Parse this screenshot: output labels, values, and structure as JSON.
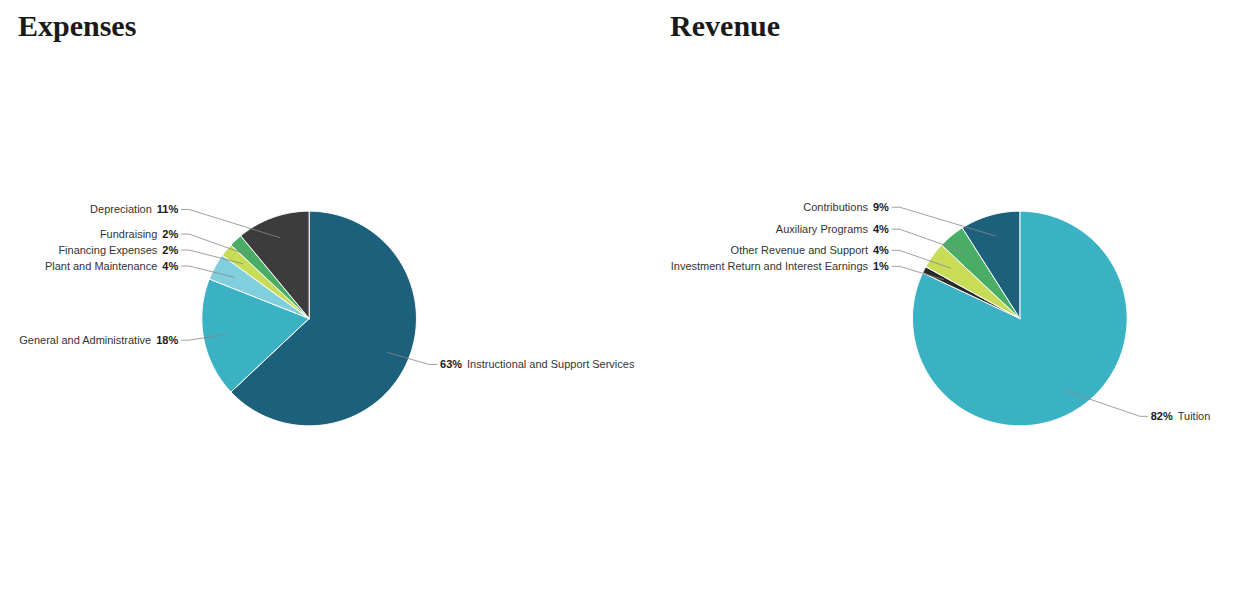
{
  "chart_data": [
    {
      "type": "pie",
      "title": "Expenses",
      "categories": [
        "Instructional and Support Services",
        "General and Administrative",
        "Plant and Maintenance",
        "Financing Expenses",
        "Fundraising",
        "Depreciation"
      ],
      "values": [
        63,
        18,
        4,
        2,
        2,
        11
      ],
      "value_labels": [
        "63%",
        "18%",
        "4%",
        "2%",
        "2%",
        "11%"
      ],
      "colors": [
        "#1d607c",
        "#3ab2c4",
        "#7fcfdc",
        "#c9dc58",
        "#4aad66",
        "#3c3c3c"
      ],
      "data_labels": true
    },
    {
      "type": "pie",
      "title": "Revenue",
      "categories": [
        "Tuition",
        "Investment Return and Interest Earnings",
        "Other Revenue and Support",
        "Auxiliary Programs",
        "Contributions"
      ],
      "values": [
        82,
        1,
        4,
        4,
        9
      ],
      "value_labels": [
        "82%",
        "1%",
        "4%",
        "4%",
        "9%"
      ],
      "colors": [
        "#3ab2c4",
        "#2a2a2a",
        "#c9dc58",
        "#4aad66",
        "#1d607c"
      ],
      "data_labels": true
    }
  ]
}
